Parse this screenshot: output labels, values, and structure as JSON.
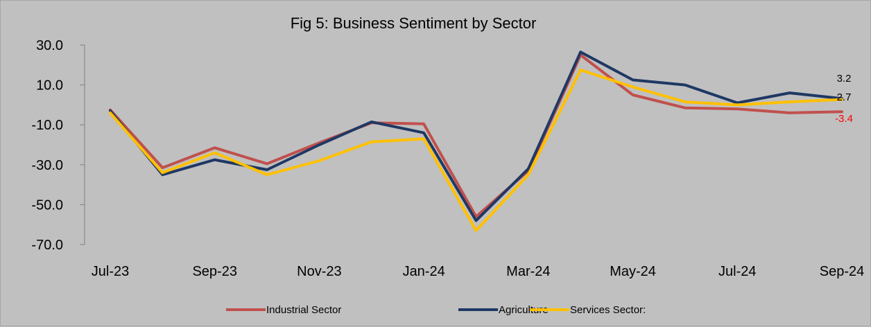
{
  "chart_data": {
    "type": "line",
    "title": "Fig 5: Business Sentiment by Sector",
    "xlabel": "",
    "ylabel": "",
    "ylim": [
      -70,
      30
    ],
    "yticks": [
      "30.0",
      "10.0",
      "-10.0",
      "-30.0",
      "-50.0",
      "-70.0"
    ],
    "ytick_values": [
      30,
      10,
      -10,
      -30,
      -50,
      -70
    ],
    "categories": [
      "Jul-23",
      "Aug-23",
      "Sep-23",
      "Oct-23",
      "Nov-23",
      "Dec-23",
      "Jan-24",
      "Feb-24",
      "Mar-24",
      "Apr-24",
      "May-24",
      "Jun-24",
      "Jul-24",
      "Aug-24",
      "Sep-24"
    ],
    "xtick_labels": [
      "Jul-23",
      "Sep-23",
      "Nov-23",
      "Jan-24",
      "Mar-24",
      "May-24",
      "Jul-24",
      "Sep-24"
    ],
    "xtick_indices": [
      0,
      2,
      4,
      6,
      8,
      10,
      12,
      14
    ],
    "grid": false,
    "legend_position": "bottom",
    "series": [
      {
        "name": "Industrial Sector",
        "color": "#c0504d",
        "values": [
          -2.5,
          -31.5,
          -21.5,
          -29.5,
          -19,
          -9,
          -9.5,
          -56,
          -33,
          25,
          5,
          -1.5,
          -2,
          -4,
          -3.4
        ]
      },
      {
        "name": "Agriculture",
        "color": "#1f3864",
        "values": [
          -3,
          -35,
          -27.5,
          -32.5,
          -20,
          -8.5,
          -14,
          -58,
          -32,
          26.5,
          12.5,
          10,
          1,
          6,
          3.2
        ]
      },
      {
        "name": "Services Sector:",
        "color": "#ffc000",
        "values": [
          -4,
          -34,
          -24,
          -35,
          -28,
          -18.5,
          -17,
          -63,
          -35,
          17.5,
          9,
          1.5,
          0,
          1.5,
          2.7
        ]
      }
    ],
    "end_labels": [
      {
        "text": "3.2",
        "color": "#000000"
      },
      {
        "text": "2.7",
        "color": "#000000"
      },
      {
        "text": "-3.4",
        "color": "#ff0000"
      }
    ]
  }
}
